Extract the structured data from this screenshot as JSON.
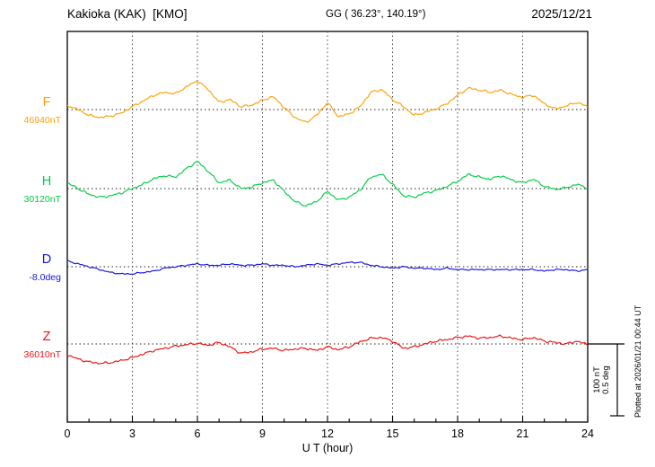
{
  "chart_data": {
    "type": "line",
    "title": "Kakioka (KAK)  [KMO]",
    "coords": "GG ( 36.23°, 140.19°)",
    "date": "2025/12/21",
    "xlabel": "U T (hour)",
    "x_range": [
      0,
      24
    ],
    "x_ticks": [
      0,
      3,
      6,
      9,
      12,
      15,
      18,
      21,
      24
    ],
    "x_step_hours": 0.5,
    "grid": "dotted vertical lines every 3 hours, dotted horizontal baseline per channel",
    "scale_bar": {
      "nT": "100 nT",
      "deg": "0.5 deg"
    },
    "plotted_note": "Plotted at 2026/01/21 00:44 UT",
    "series": [
      {
        "name": "F",
        "baseline_label": "46940nT",
        "baseline_value": 46940,
        "unit": "nT",
        "color": "#FFA000",
        "values": [
          6,
          0,
          -8,
          -11,
          -9,
          -5,
          4,
          12,
          20,
          24,
          22,
          32,
          40,
          28,
          10,
          14,
          4,
          6,
          13,
          18,
          3,
          -11,
          -18,
          -8,
          10,
          -10,
          -6,
          4,
          24,
          28,
          14,
          4,
          -8,
          -4,
          1,
          8,
          20,
          30,
          27,
          24,
          27,
          21,
          17,
          20,
          8,
          1,
          5,
          10,
          4
        ]
      },
      {
        "name": "H",
        "baseline_label": "30120nT",
        "baseline_value": 30120,
        "unit": "nT",
        "color": "#00CC44",
        "values": [
          8,
          0,
          -8,
          -12,
          -10,
          -6,
          0,
          6,
          14,
          18,
          16,
          28,
          38,
          24,
          8,
          12,
          0,
          2,
          8,
          12,
          -4,
          -18,
          -24,
          -18,
          -4,
          -16,
          -12,
          -2,
          16,
          20,
          6,
          -10,
          -12,
          -6,
          -3,
          3,
          10,
          20,
          16,
          13,
          18,
          12,
          8,
          13,
          3,
          -1,
          1,
          6,
          1
        ]
      },
      {
        "name": "D",
        "baseline_label": "-8.0deg",
        "baseline_value": -8.0,
        "unit": "deg",
        "color": "#1414E6",
        "values": [
          0.04,
          0.02,
          0,
          -0.02,
          -0.04,
          -0.05,
          -0.05,
          -0.04,
          -0.03,
          -0.01,
          0,
          0.01,
          0.02,
          0.01,
          0.01,
          0.02,
          0.01,
          0.01,
          0.02,
          0.01,
          0.01,
          0,
          0.01,
          0.02,
          0.01,
          0.02,
          0.03,
          0.03,
          0.01,
          0,
          -0.01,
          0,
          -0.01,
          -0.01,
          -0.02,
          -0.01,
          -0.02,
          -0.02,
          -0.02,
          -0.02,
          -0.02,
          -0.02,
          -0.02,
          -0.02,
          -0.03,
          -0.02,
          -0.02,
          -0.03,
          -0.02
        ]
      },
      {
        "name": "Z",
        "baseline_label": "36010nT",
        "baseline_value": 36010,
        "unit": "nT",
        "color": "#EE1111",
        "values": [
          -15,
          -21,
          -25,
          -27,
          -26,
          -23,
          -19,
          -14,
          -9,
          -6,
          -3,
          -1,
          1,
          -2,
          2,
          -4,
          -13,
          -11,
          -7,
          -6,
          -9,
          -7,
          -6,
          -9,
          -4,
          -8,
          -4,
          3,
          8,
          9,
          4,
          -6,
          -4,
          0,
          4,
          6,
          9,
          11,
          8,
          9,
          11,
          8,
          6,
          9,
          4,
          2,
          0,
          4,
          -1
        ]
      }
    ]
  }
}
